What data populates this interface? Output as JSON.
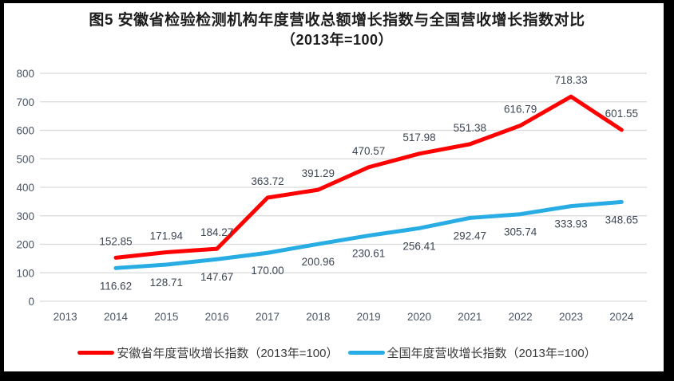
{
  "figure": {
    "title_line1": "图5  安徽省检验检测机构年度营收总额增长指数与全国营收增长指数对比",
    "title_line2": "（2013年=100）"
  },
  "legend": {
    "items": [
      {
        "label": "安徽省年度营收增长指数（2013年=100）",
        "color": "#FF0000"
      },
      {
        "label": "全国年度营收增长指数（2013年=100）",
        "color": "#27ACE3"
      }
    ]
  },
  "chart_data": {
    "type": "line",
    "x": [
      "2013",
      "2014",
      "2015",
      "2016",
      "2017",
      "2018",
      "2019",
      "2020",
      "2021",
      "2022",
      "2023",
      "2024"
    ],
    "ylim": [
      0,
      800
    ],
    "ytick_step": 100,
    "yticks": [
      0,
      100,
      200,
      300,
      400,
      500,
      600,
      700,
      800
    ],
    "grid": true,
    "legend_position": "bottom",
    "series": [
      {
        "name": "安徽省年度营收增长指数（2013年=100）",
        "color": "#FF0000",
        "start_x": "2014",
        "start_index": 1,
        "label_side": "above",
        "values": [
          152.85,
          171.94,
          184.27,
          363.72,
          391.29,
          470.57,
          517.98,
          551.38,
          616.79,
          718.33,
          601.55
        ],
        "labels": [
          "152.85",
          "171.94",
          "184.27",
          "363.72",
          "391.29",
          "470.57",
          "517.98",
          "551.38",
          "616.79",
          "718.33",
          "601.55"
        ]
      },
      {
        "name": "全国年度营收增长指数（2013年=100）",
        "color": "#27ACE3",
        "start_x": "2014",
        "start_index": 1,
        "label_side": "below",
        "values": [
          116.62,
          128.71,
          147.67,
          170.0,
          200.96,
          230.61,
          256.41,
          292.47,
          305.74,
          333.93,
          348.65
        ],
        "labels": [
          "116.62",
          "128.71",
          "147.67",
          "170.00",
          "200.96",
          "230.61",
          "256.41",
          "292.47",
          "305.74",
          "333.93",
          "348.65"
        ]
      }
    ],
    "colors": {
      "gridline": "#D9D9D9",
      "tick_label": "#4A5565",
      "data_label": "#3D4653"
    }
  }
}
